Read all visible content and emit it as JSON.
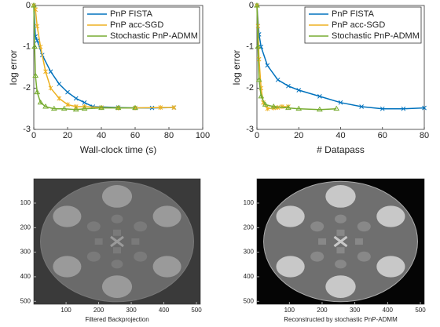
{
  "chart_data": [
    {
      "type": "line",
      "xlabel": "Wall-clock time (s)",
      "ylabel": "log error",
      "xlim": [
        0,
        100
      ],
      "ylim": [
        -3,
        0
      ],
      "xticks": [
        0,
        20,
        40,
        60,
        80,
        100
      ],
      "yticks": [
        -3,
        -2,
        -1,
        0
      ],
      "legend": "upper right",
      "series": [
        {
          "name": "PnP FISTA",
          "color": "#0072bd",
          "marker": "x",
          "x": [
            0,
            1,
            2,
            5,
            10,
            15,
            20,
            25,
            30,
            35,
            50,
            60,
            70,
            83
          ],
          "values": [
            0,
            -0.75,
            -0.85,
            -1.2,
            -1.6,
            -1.9,
            -2.1,
            -2.25,
            -2.35,
            -2.45,
            -2.47,
            -2.48,
            -2.48,
            -2.47
          ]
        },
        {
          "name": "PnP acc-SGD",
          "color": "#edb120",
          "marker": "*",
          "x": [
            0,
            1,
            2,
            4,
            7,
            10,
            15,
            20,
            25,
            30,
            40,
            50,
            60,
            75,
            83
          ],
          "values": [
            0,
            -0.1,
            -0.5,
            -1.0,
            -1.6,
            -2.0,
            -2.25,
            -2.4,
            -2.45,
            -2.45,
            -2.47,
            -2.48,
            -2.48,
            -2.47,
            -2.47
          ]
        },
        {
          "name": "Stochastic PnP-ADMM",
          "color": "#77ac30",
          "marker": "triangle",
          "x": [
            0,
            0.5,
            1,
            2,
            4,
            7,
            12,
            18,
            25,
            30,
            40,
            50,
            60
          ],
          "values": [
            0,
            -1.0,
            -1.7,
            -2.1,
            -2.35,
            -2.45,
            -2.5,
            -2.5,
            -2.52,
            -2.5,
            -2.48,
            -2.48,
            -2.48
          ]
        }
      ]
    },
    {
      "type": "line",
      "xlabel": "# Datapass",
      "ylabel": "log error",
      "xlim": [
        0,
        80
      ],
      "ylim": [
        -3,
        0
      ],
      "xticks": [
        0,
        20,
        40,
        60,
        80
      ],
      "yticks": [
        -3,
        -2,
        -1,
        0
      ],
      "legend": "upper right",
      "series": [
        {
          "name": "PnP FISTA",
          "color": "#0072bd",
          "marker": "x",
          "x": [
            0,
            1,
            2,
            5,
            10,
            15,
            20,
            30,
            40,
            50,
            60,
            70,
            80
          ],
          "values": [
            0,
            -0.7,
            -1.0,
            -1.45,
            -1.8,
            -1.95,
            -2.05,
            -2.2,
            -2.35,
            -2.45,
            -2.5,
            -2.5,
            -2.48
          ]
        },
        {
          "name": "PnP acc-SGD",
          "color": "#edb120",
          "marker": "*",
          "x": [
            0,
            0.5,
            1,
            2,
            3,
            5,
            8,
            10,
            12,
            15
          ],
          "values": [
            0,
            -0.5,
            -1.3,
            -2.0,
            -2.35,
            -2.5,
            -2.48,
            -2.47,
            -2.45,
            -2.45
          ]
        },
        {
          "name": "Stochastic PnP-ADMM",
          "color": "#77ac30",
          "marker": "triangle",
          "x": [
            0,
            0.5,
            1,
            2,
            4,
            8,
            15,
            20,
            30,
            38
          ],
          "values": [
            0,
            -1.0,
            -1.8,
            -2.2,
            -2.4,
            -2.45,
            -2.48,
            -2.5,
            -2.52,
            -2.5
          ]
        }
      ]
    },
    {
      "type": "image",
      "xlabel": "Filtered Backprojection",
      "xlim": [
        1,
        512
      ],
      "ylim": [
        1,
        512
      ],
      "ydir": "reverse",
      "xticks": [
        100,
        200,
        300,
        400,
        500
      ],
      "yticks": [
        100,
        200,
        300,
        400,
        500
      ],
      "style": "fbp"
    },
    {
      "type": "image",
      "xlabel": "Reconstructed by stochastic PnP-ADMM",
      "xlim": [
        1,
        512
      ],
      "ylim": [
        1,
        512
      ],
      "ydir": "reverse",
      "xticks": [
        100,
        200,
        300,
        400,
        500
      ],
      "yticks": [
        100,
        200,
        300,
        400,
        500
      ],
      "style": "recon"
    }
  ]
}
